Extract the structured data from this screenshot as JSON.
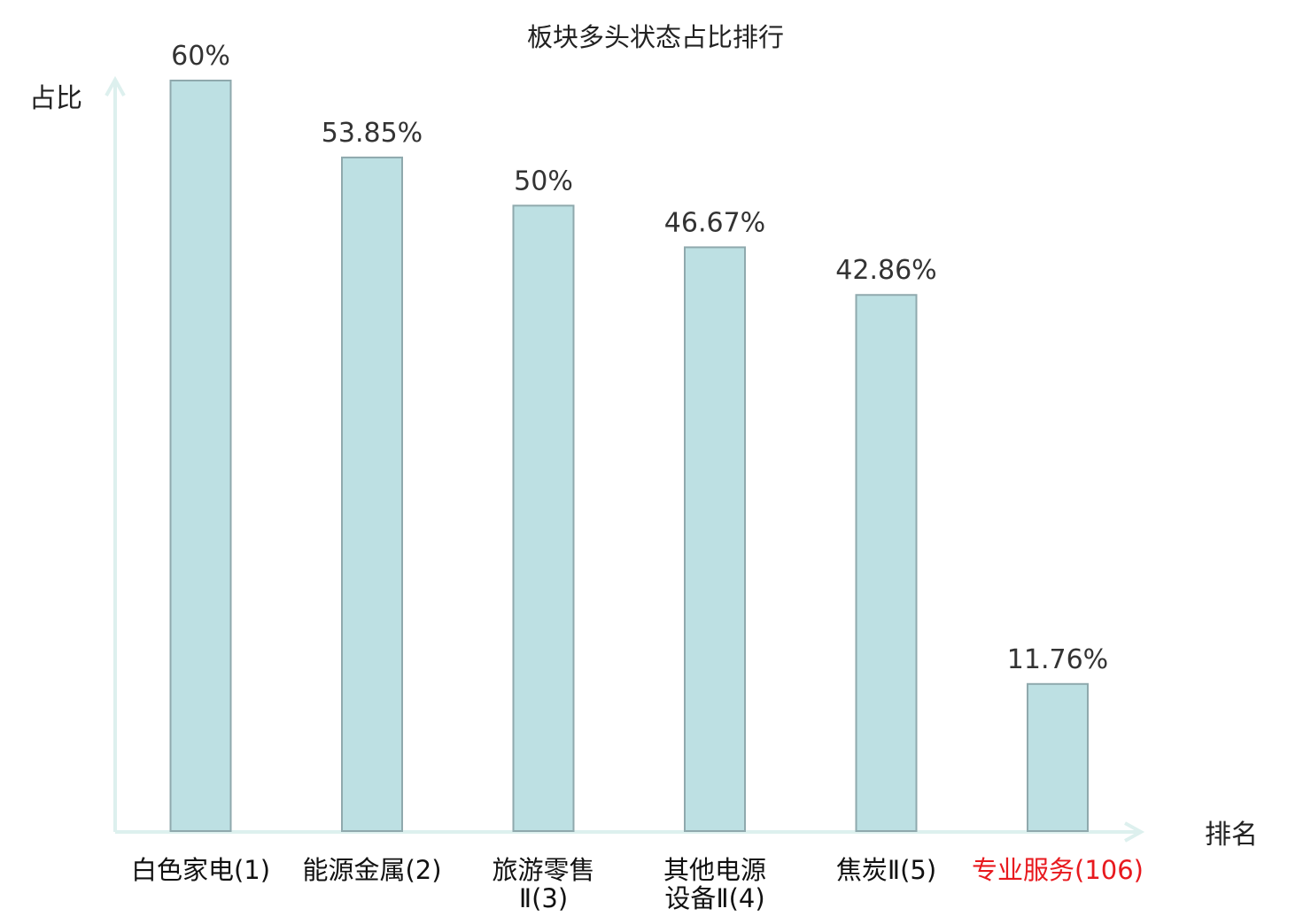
{
  "chart_data": {
    "type": "bar",
    "title": "板块多头状态占比排行",
    "ylabel": "占比",
    "xlabel": "排名",
    "categories": [
      [
        "白色家电(1)"
      ],
      [
        "能源金属(2)"
      ],
      [
        "旅游零售",
        "Ⅱ(3)"
      ],
      [
        "其他电源",
        "设备Ⅱ(4)"
      ],
      [
        "焦炭Ⅱ(5)"
      ],
      [
        "专业服务(106)"
      ]
    ],
    "values": [
      60,
      53.85,
      50,
      46.67,
      42.86,
      11.76
    ],
    "value_labels": [
      "60%",
      "53.85%",
      "50%",
      "46.67%",
      "42.86%",
      "11.76%"
    ],
    "highlight_index": 5,
    "ylim": [
      0,
      60
    ],
    "grid": false,
    "legend": "none"
  },
  "colors": {
    "bar_fill": "#bde0e3",
    "bar_stroke": "#8fa9ad",
    "axis": "#ddf0ee",
    "highlight_text": "#e8191e"
  }
}
